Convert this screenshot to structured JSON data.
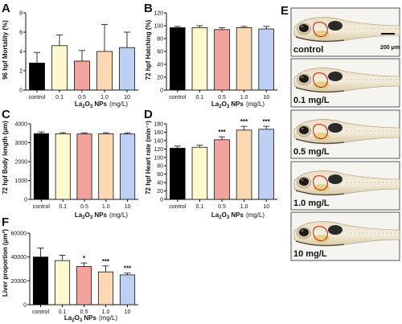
{
  "figure": {
    "colors": {
      "control": "#000000",
      "c01": "#fdf9cf",
      "c05": "#f3a39d",
      "c10": "#fdd9b3",
      "c100": "#bdd0f3",
      "error": "#222222"
    },
    "photo_labels": [
      "control",
      "0.1 mg/L",
      "0.5 mg/L",
      "1.0 mg/L",
      "10 mg/L"
    ],
    "scale_bar_label": "200 μm"
  },
  "chart_data": [
    {
      "panel": "A",
      "type": "bar",
      "ylabel": "96 hpf Mortality (%)",
      "xlabel_main": "La",
      "xlabel_sub1": "2",
      "xlabel_mid": "O",
      "xlabel_sub2": "3",
      "xlabel_tail": " NPs",
      "xlabel_unit": "(mg/L)",
      "categories": [
        "control",
        "0.1",
        "0.5",
        "1.0",
        "10"
      ],
      "values": [
        2.8,
        4.6,
        3.0,
        4.0,
        4.4
      ],
      "errors": [
        1.1,
        1.1,
        1.1,
        2.8,
        1.6
      ],
      "sig": [
        "",
        "",
        "",
        "",
        ""
      ],
      "ylim": [
        0,
        8
      ],
      "yticks": [
        0,
        2,
        4,
        6,
        8
      ],
      "ytick_labels": [
        "0",
        "2",
        "4",
        "6",
        "8"
      ]
    },
    {
      "panel": "B",
      "type": "bar",
      "ylabel": "72 hpf Hatching (%)",
      "xlabel_main": "La",
      "xlabel_sub1": "2",
      "xlabel_mid": "O",
      "xlabel_sub2": "3",
      "xlabel_tail": " NPs",
      "xlabel_unit": "(mg/L)",
      "categories": [
        "control",
        "0.1",
        "0.5",
        "1.0",
        "10"
      ],
      "values": [
        97,
        97,
        94,
        97,
        95
      ],
      "errors": [
        2,
        3,
        3,
        2,
        4
      ],
      "sig": [
        "",
        "",
        "",
        "",
        ""
      ],
      "ylim": [
        0,
        120
      ],
      "yticks": [
        0,
        20,
        40,
        60,
        80,
        100,
        120
      ],
      "ytick_labels": [
        "0",
        "20",
        "40",
        "60",
        "80",
        "100",
        "120"
      ]
    },
    {
      "panel": "C",
      "type": "bar",
      "ylabel": "72 hpf Body length (μm)",
      "xlabel_main": "La",
      "xlabel_sub1": "2",
      "xlabel_mid": "O",
      "xlabel_sub2": "3",
      "xlabel_tail": " NPs",
      "xlabel_unit": "(mg/L)",
      "categories": [
        "control",
        "0.1",
        "0.5",
        "1.0",
        "10"
      ],
      "values": [
        3480,
        3470,
        3460,
        3470,
        3460
      ],
      "errors": [
        90,
        60,
        60,
        60,
        60
      ],
      "sig": [
        "",
        "",
        "",
        "",
        ""
      ],
      "ylim": [
        0,
        4000
      ],
      "yticks": [
        0,
        1000,
        2000,
        3000,
        4000
      ],
      "ytick_labels": [
        "0",
        "1000",
        "2000",
        "3000",
        "4000"
      ]
    },
    {
      "panel": "D",
      "type": "bar",
      "ylabel": "72 hpf Heart rate (min⁻¹)",
      "xlabel_main": "La",
      "xlabel_sub1": "2",
      "xlabel_mid": "O",
      "xlabel_sub2": "3",
      "xlabel_tail": " NPs",
      "xlabel_unit": "(mg/L)",
      "categories": [
        "control",
        "0.1",
        "0.5",
        "1.0",
        "10"
      ],
      "values": [
        122,
        124,
        142,
        165,
        167
      ],
      "errors": [
        5,
        5,
        7,
        9,
        7
      ],
      "sig": [
        "",
        "",
        "***",
        "***",
        "***"
      ],
      "ylim": [
        0,
        180
      ],
      "yticks": [
        0,
        20,
        40,
        60,
        80,
        100,
        120,
        140,
        160,
        180
      ],
      "ytick_labels": [
        "0",
        "20",
        "40",
        "60",
        "80",
        "100",
        "120",
        "140",
        "160",
        "180"
      ]
    },
    {
      "panel": "F",
      "type": "bar",
      "ylabel": "Liver proportion (μm²)",
      "xlabel_main": "La",
      "xlabel_sub1": "2",
      "xlabel_mid": "O",
      "xlabel_sub2": "3",
      "xlabel_tail": " NPs",
      "xlabel_unit": "(mg/L)",
      "categories": [
        "control",
        "0.1",
        "0.5",
        "1.0",
        "10"
      ],
      "values": [
        40000,
        37000,
        32000,
        27500,
        25000
      ],
      "errors": [
        7500,
        4500,
        3000,
        5000,
        1500
      ],
      "sig": [
        "",
        "",
        "*",
        "***",
        "***"
      ],
      "ylim": [
        0,
        60000
      ],
      "yticks": [
        0,
        20000,
        40000,
        60000
      ],
      "ytick_labels": [
        "0",
        "20000",
        "40000",
        "60000"
      ]
    }
  ]
}
